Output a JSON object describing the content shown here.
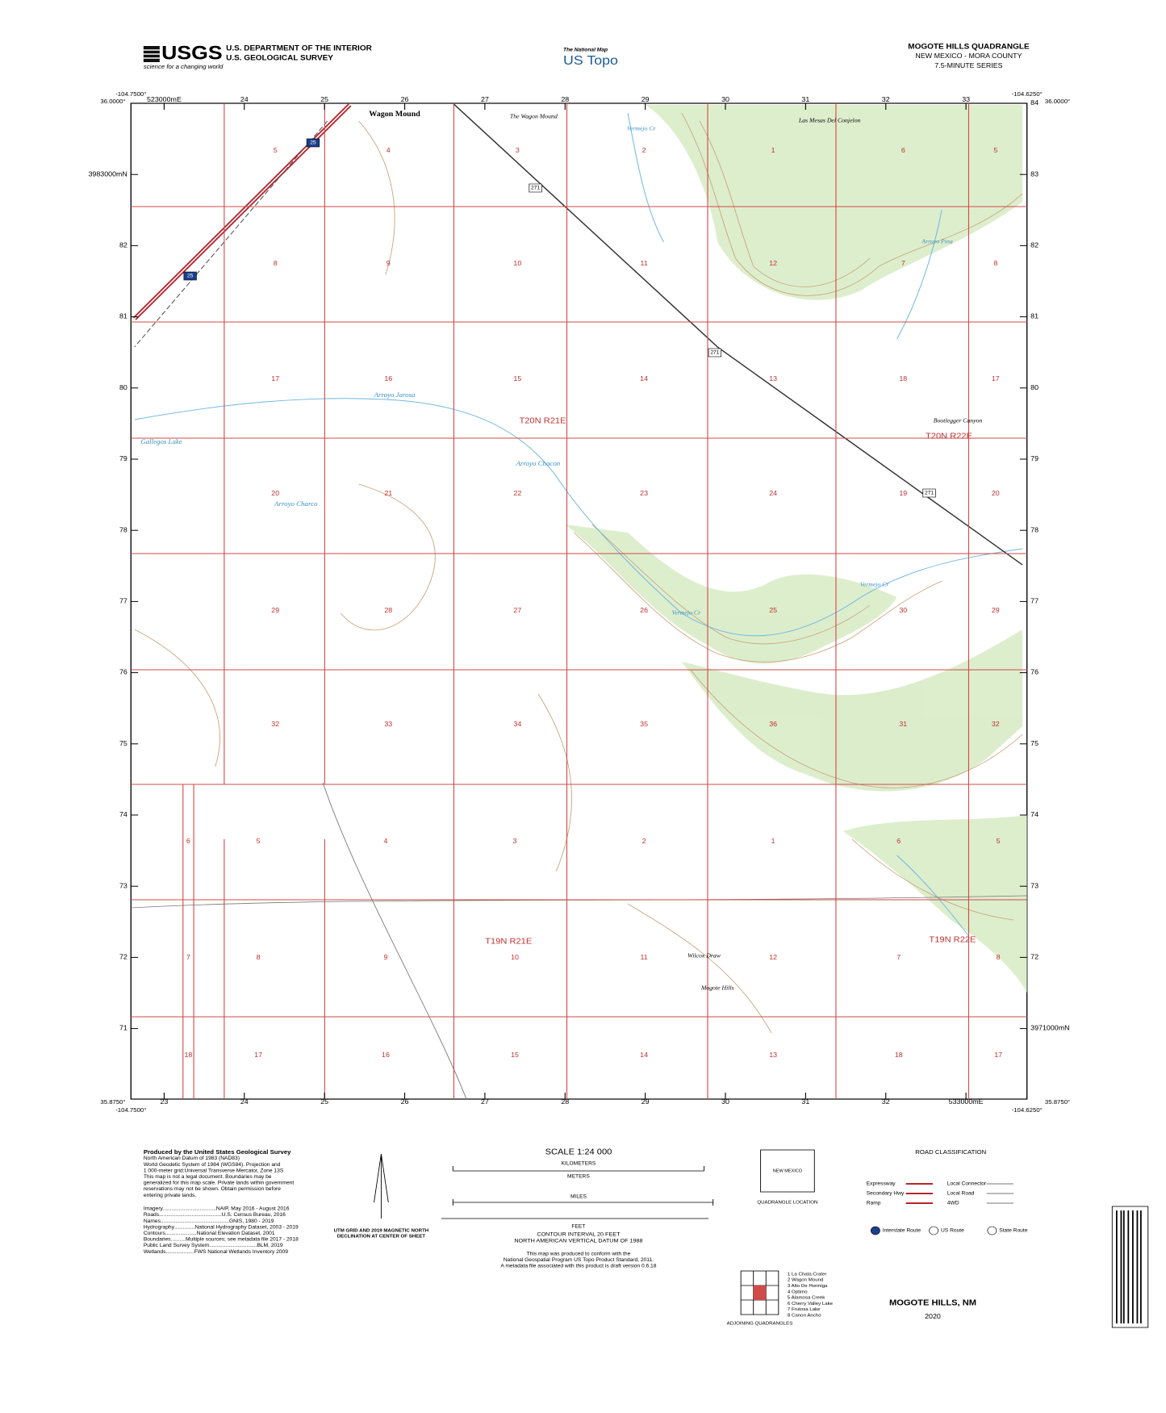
{
  "header": {
    "agency": "USGS",
    "tagline": "science for a changing world",
    "dept": "U.S. DEPARTMENT OF THE INTERIOR",
    "survey": "U.S. GEOLOGICAL SURVEY",
    "nm_small": "The National Map",
    "nm_big": "US Topo",
    "quad": "MOGOTE HILLS QUADRANGLE",
    "state": "NEW MEXICO - MORA COUNTY",
    "series": "7.5-MINUTE SERIES"
  },
  "corners": {
    "nw_lon": "-104.7500°",
    "nw_lat": "36.0000°",
    "ne_lon": "-104.6250°",
    "ne_lat": "36.0000°",
    "sw_lon": "-104.7500°",
    "sw_lat": "35.8750°",
    "se_lon": "-104.6250°",
    "se_lat": "35.8750°"
  },
  "grid": {
    "eastings_top": [
      "523000mE",
      "24",
      "25",
      "26",
      "27",
      "28",
      "29",
      "30",
      "31",
      "32",
      "33"
    ],
    "eastings_bottom": [
      "23",
      "24",
      "25",
      "26",
      "27",
      "28",
      "29",
      "30",
      "31",
      "32",
      "533000mE"
    ],
    "northings_left": [
      "3983000mN",
      "82",
      "81",
      "80",
      "79",
      "78",
      "77",
      "76",
      "75",
      "74",
      "73",
      "72",
      "71"
    ],
    "northings_right": [
      "84",
      "83",
      "82",
      "81",
      "80",
      "79",
      "78",
      "77",
      "76",
      "75",
      "74",
      "73",
      "72",
      "3971000mN"
    ]
  },
  "sections": [
    [
      "5",
      "4",
      "3",
      "2",
      "1",
      "6",
      "5"
    ],
    [
      "8",
      "9",
      "10",
      "11",
      "12",
      "7",
      "8"
    ],
    [
      "17",
      "16",
      "15",
      "14",
      "13",
      "18",
      "17"
    ],
    [
      "20",
      "21",
      "22",
      "23",
      "24",
      "19",
      "20"
    ],
    [
      "29",
      "28",
      "27",
      "26",
      "25",
      "30",
      "29"
    ],
    [
      "32",
      "33",
      "34",
      "35",
      "36",
      "31",
      "32"
    ],
    [
      "6",
      "5",
      "4",
      "3",
      "2",
      "1",
      "6",
      "5"
    ],
    [
      "7",
      "8",
      "9",
      "10",
      "11",
      "12",
      "7",
      "8"
    ],
    [
      "18",
      "17",
      "16",
      "15",
      "14",
      "13",
      "18",
      "17"
    ]
  ],
  "places": [
    "Wagon Mound",
    "The Wagon Mound",
    "Las Mesas Del Conjelon",
    "Vermejo Cr",
    "Arroyo Jarosa",
    "Gallegos Lake",
    "Arroyo Chacon",
    "Arroyo Charco",
    "Bootlegger Canyon",
    "Vermejo Cr",
    "Vermejo Cr",
    "Wilcox Draw",
    "Mogote Hills",
    "Arroyo Pina"
  ],
  "townships": [
    "T20N R21E",
    "T20N R22E",
    "T19N R21E",
    "T19N R22E"
  ],
  "routes": [
    "271",
    "271",
    "271",
    "25",
    "25"
  ],
  "footer": {
    "producer": [
      "Produced by the United States Geological Survey",
      "North American Datum of 1983 (NAD83)",
      "World Geodetic System of 1984 (WGS84). Projection and",
      "1 000-meter grid:Universal Transverse Mercator, Zone 13S",
      "This map is not a legal document. Boundaries may be",
      "generalized for this map scale. Private lands within government",
      "reservations may not be shown. Obtain permission before",
      "entering private lands."
    ],
    "credits": [
      "Imagery....................................NAIP, May 2016 - August 2016",
      "Roads..........................................U.S. Census Bureau, 2016",
      "Names..............................................GNIS, 1980 - 2019",
      "Hydrography..............National Hydrography Dataset, 2003 - 2019",
      "Contours.....................National Elevation Dataset, 2001",
      "Boundaries..........Multiple sources; see metadata file 2017 - 2018",
      "Public Land Survey System................................BLM, 2019",
      "Wetlands...................FWS National Wetlands Inventory 2009"
    ],
    "declination": [
      "UTM GRID AND 2019 MAGNETIC NORTH",
      "DECLINATION AT CENTER OF SHEET"
    ],
    "scale": "SCALE 1:24 000",
    "units": [
      "KILOMETERS",
      "METERS",
      "MILES",
      "FEET"
    ],
    "contour": [
      "CONTOUR INTERVAL 20 FEET",
      "NORTH AMERICAN VERTICAL DATUM OF 1988"
    ],
    "standard": [
      "This map was produced to conform with the",
      "National Geospatial Program US Topo Product Standard, 2011.",
      "A metadata file associated with this product is draft version 0.6.18"
    ],
    "location": [
      "NEW MEXICO",
      "QUADRANGLE LOCATION"
    ],
    "road_title": "ROAD CLASSIFICATION",
    "roads": [
      "Expressway",
      "Secondary Hwy",
      "Ramp",
      "Local Connector",
      "Local Road",
      "4WD"
    ],
    "shields": [
      "Interstate Route",
      "US Route",
      "State Route"
    ],
    "adjoining_title": "ADJOINING QUADRANGLES",
    "adjoining": [
      "1 La Chata Crater",
      "2 Wagon Mound",
      "3 Alto De Hormiga",
      "4 Optimo",
      "5 Alamosa Creek",
      "6 Cherry Valley Lake",
      "7 Frutosa Lake",
      "8 Canon Ancho"
    ],
    "title": "MOGOTE HILLS, NM",
    "year": "2020"
  }
}
